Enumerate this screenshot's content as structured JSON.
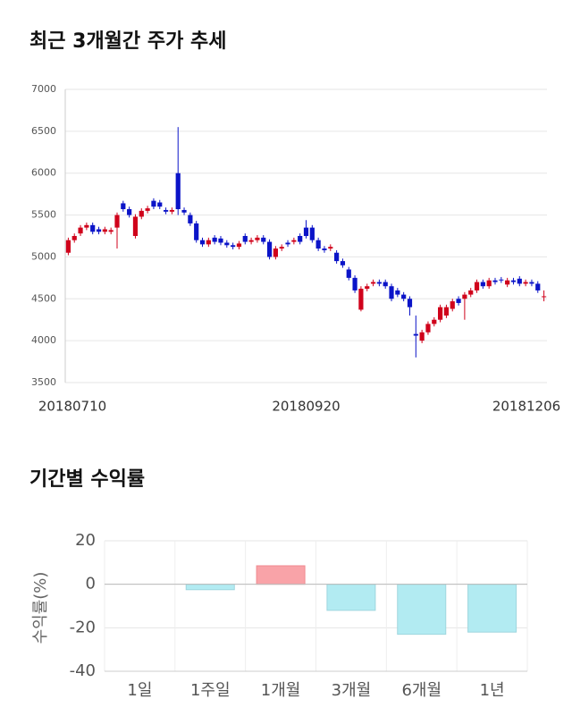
{
  "chart_data": [
    {
      "type": "candlestick",
      "title": "최근 3개월간 주가 추세",
      "categories": [
        "20180710",
        null,
        null,
        null,
        null,
        null,
        null,
        null,
        null,
        null,
        null,
        null,
        null,
        null,
        null,
        null,
        null,
        null,
        null,
        null,
        null,
        null,
        null,
        null,
        null,
        null,
        null,
        null,
        null,
        null,
        null,
        null,
        null,
        null,
        null,
        null,
        null,
        null,
        null,
        "20180920",
        null,
        null,
        null,
        null,
        null,
        null,
        null,
        null,
        null,
        null,
        null,
        null,
        null,
        null,
        null,
        null,
        null,
        null,
        null,
        null,
        null,
        null,
        null,
        null,
        null,
        null,
        null,
        null,
        null,
        null,
        null,
        null,
        null,
        null,
        null,
        null,
        null,
        null,
        "20181206"
      ],
      "open": [
        5050,
        5200,
        5280,
        5350,
        5380,
        5330,
        5300,
        5300,
        5350,
        5640,
        5570,
        5250,
        5480,
        5550,
        5670,
        5650,
        5560,
        5540,
        6000,
        5560,
        5500,
        5400,
        5200,
        5150,
        5230,
        5220,
        5170,
        5140,
        5120,
        5250,
        5180,
        5200,
        5230,
        5180,
        5000,
        5100,
        5170,
        5180,
        5250,
        5350,
        5350,
        5200,
        5100,
        5100,
        5050,
        4950,
        4850,
        4750,
        4370,
        4620,
        4680,
        4700,
        4700,
        4650,
        4600,
        4550,
        4500,
        4080,
        4000,
        4100,
        4200,
        4250,
        4300,
        4380,
        4500,
        4500,
        4550,
        4600,
        4700,
        4650,
        4720,
        4730,
        4670,
        4720,
        4740,
        4680,
        4700,
        4680,
        4530
      ],
      "high": [
        5230,
        5280,
        5380,
        5410,
        5410,
        5360,
        5360,
        5350,
        5530,
        5670,
        5600,
        5510,
        5580,
        5610,
        5700,
        5680,
        5590,
        5590,
        6550,
        5590,
        5530,
        5430,
        5230,
        5230,
        5260,
        5250,
        5200,
        5170,
        5190,
        5280,
        5230,
        5260,
        5260,
        5210,
        5130,
        5150,
        5200,
        5230,
        5280,
        5440,
        5380,
        5230,
        5130,
        5150,
        5080,
        4980,
        4880,
        4780,
        4650,
        4680,
        4730,
        4730,
        4730,
        4680,
        4630,
        4580,
        4530,
        4300,
        4130,
        4230,
        4280,
        4430,
        4430,
        4500,
        4530,
        4580,
        4630,
        4730,
        4730,
        4750,
        4750,
        4760,
        4750,
        4750,
        4770,
        4730,
        4730,
        4710,
        4600
      ],
      "low": [
        5020,
        5170,
        5250,
        5320,
        5270,
        5270,
        5270,
        5270,
        5100,
        5540,
        5470,
        5220,
        5450,
        5520,
        5570,
        5570,
        5510,
        5510,
        5500,
        5500,
        5370,
        5170,
        5120,
        5120,
        5150,
        5140,
        5110,
        5090,
        5090,
        5150,
        5150,
        5170,
        5150,
        4970,
        4970,
        5070,
        5120,
        5150,
        5150,
        5220,
        5170,
        5070,
        5050,
        5070,
        4920,
        4870,
        4720,
        4570,
        4350,
        4590,
        4650,
        4650,
        4620,
        4470,
        4520,
        4470,
        4300,
        3800,
        3970,
        4070,
        4170,
        4220,
        4270,
        4350,
        4420,
        4250,
        4520,
        4570,
        4620,
        4620,
        4670,
        4690,
        4640,
        4670,
        4650,
        4650,
        4650,
        4570,
        4470
      ],
      "close": [
        5200,
        5250,
        5350,
        5380,
        5300,
        5300,
        5330,
        5320,
        5500,
        5570,
        5500,
        5480,
        5550,
        5580,
        5600,
        5600,
        5540,
        5560,
        5570,
        5530,
        5400,
        5200,
        5150,
        5200,
        5180,
        5170,
        5140,
        5120,
        5160,
        5180,
        5200,
        5230,
        5180,
        5000,
        5100,
        5120,
        5150,
        5200,
        5180,
        5250,
        5200,
        5100,
        5080,
        5120,
        4950,
        4900,
        4750,
        4600,
        4620,
        4650,
        4700,
        4680,
        4650,
        4500,
        4550,
        4500,
        4400,
        4060,
        4100,
        4200,
        4250,
        4400,
        4400,
        4470,
        4450,
        4550,
        4600,
        4700,
        4650,
        4720,
        4700,
        4720,
        4720,
        4700,
        4680,
        4700,
        4680,
        4600,
        4530
      ],
      "up_color": "#d0021b",
      "down_color": "#0b14c8",
      "ylim": [
        3500,
        7000
      ],
      "yticks": [
        3500,
        4000,
        4500,
        5000,
        5500,
        6000,
        6500,
        7000
      ],
      "grid": true
    },
    {
      "type": "bar",
      "title": "기간별 수익률",
      "y_label": "수익률(%)",
      "categories": [
        "1일",
        "1주일",
        "1개월",
        "3개월",
        "6개월",
        "1년"
      ],
      "values": [
        0,
        -2.5,
        8.5,
        -12,
        -23,
        -22
      ],
      "positive_color": "#f9a3a8",
      "negative_color": "#b2ebf2",
      "ylim": [
        -40,
        20
      ],
      "yticks": [
        -40,
        -20,
        0,
        20
      ],
      "grid": true
    }
  ]
}
